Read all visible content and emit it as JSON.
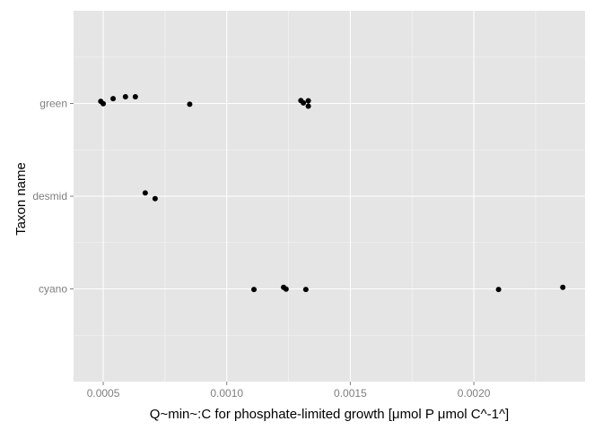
{
  "chart_data": {
    "type": "scatter",
    "title": "",
    "xlabel": "Q~min~:C for phosphate-limited growth [μmol P μmol C^-1^]",
    "ylabel": "Taxon name",
    "categories": [
      "cyano",
      "desmid",
      "green"
    ],
    "xlim": [
      0.00038,
      0.00245
    ],
    "x_ticks": [
      0.0005,
      0.001,
      0.0015,
      0.002
    ],
    "x_tick_labels": [
      "0.0005",
      "0.0010",
      "0.0015",
      "0.0020"
    ],
    "grid": true,
    "legend": "none",
    "colors": {
      "panel": "#e5e5e5",
      "grid_major": "#ffffff",
      "grid_minor": "#f2f2f2",
      "point": "#000000",
      "tick": "#7f7f7f"
    },
    "points": [
      {
        "category": "green",
        "x": 0.00049
      },
      {
        "category": "green",
        "x": 0.0005
      },
      {
        "category": "green",
        "x": 0.00054
      },
      {
        "category": "green",
        "x": 0.00059
      },
      {
        "category": "green",
        "x": 0.00063
      },
      {
        "category": "green",
        "x": 0.00085
      },
      {
        "category": "green",
        "x": 0.0013
      },
      {
        "category": "green",
        "x": 0.00131
      },
      {
        "category": "green",
        "x": 0.00133
      },
      {
        "category": "green",
        "x": 0.00133
      },
      {
        "category": "desmid",
        "x": 0.00067
      },
      {
        "category": "desmid",
        "x": 0.00071
      },
      {
        "category": "cyano",
        "x": 0.00111
      },
      {
        "category": "cyano",
        "x": 0.00123
      },
      {
        "category": "cyano",
        "x": 0.00124
      },
      {
        "category": "cyano",
        "x": 0.00132
      },
      {
        "category": "cyano",
        "x": 0.0021
      },
      {
        "category": "cyano",
        "x": 0.00236
      }
    ]
  }
}
